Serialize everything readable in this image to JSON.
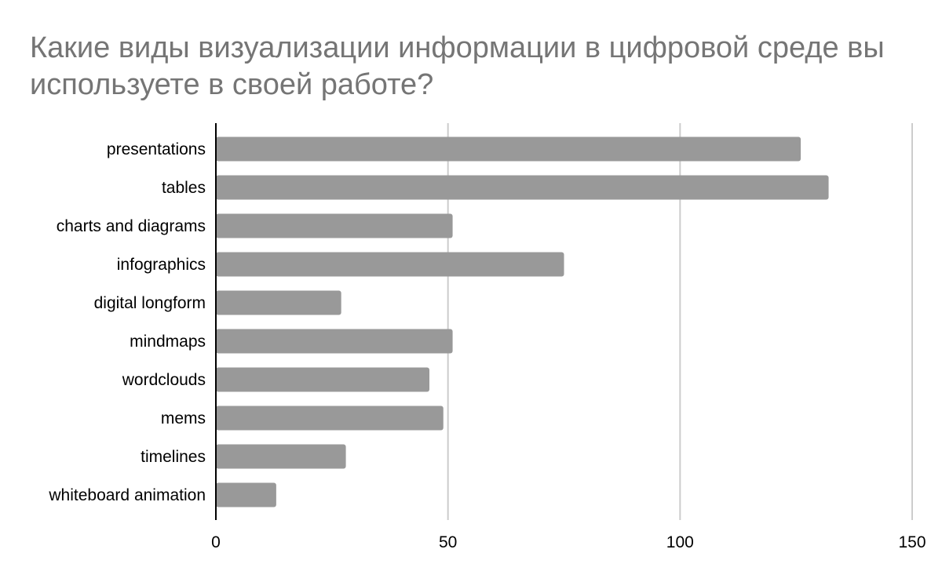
{
  "chart_data": {
    "type": "bar",
    "orientation": "horizontal",
    "title": "Какие  виды визуализации информации в цифровой среде вы используете в своей работе?",
    "categories": [
      "presentations",
      "tables",
      "charts and diagrams",
      "infographics",
      "digital longform",
      "mindmaps",
      "wordclouds",
      "mems",
      "timelines",
      "whiteboard animation"
    ],
    "values": [
      126,
      132,
      51,
      75,
      27,
      51,
      46,
      49,
      28,
      13
    ],
    "xlim": [
      0,
      150
    ],
    "xticks": [
      "0",
      "50",
      "100",
      "150"
    ],
    "xticks_values": [
      0,
      50,
      100,
      150
    ],
    "xlabel": "",
    "ylabel": "",
    "grid": "vertical",
    "legend": "none",
    "colors": {
      "bar": "#999999",
      "grid": "#cccccc",
      "axis": "#000000",
      "title": "#757575",
      "label": "#000000"
    }
  }
}
